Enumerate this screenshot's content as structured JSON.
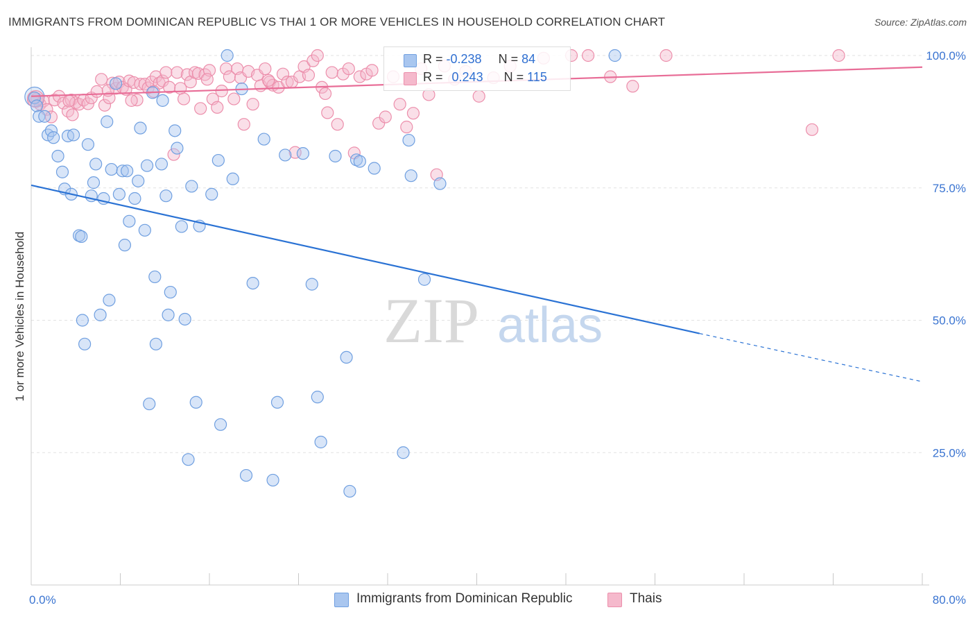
{
  "header": {
    "title": "IMMIGRANTS FROM DOMINICAN REPUBLIC VS THAI 1 OR MORE VEHICLES IN HOUSEHOLD CORRELATION CHART",
    "source": "Source: ZipAtlas.com"
  },
  "watermark": {
    "zip": "ZIP",
    "atlas": "atlas"
  },
  "legend_top": {
    "r_label": "R =",
    "n_label": "N =",
    "series1": {
      "r": "-0.238",
      "n": "84"
    },
    "series2": {
      "r": "0.243",
      "n": "115"
    }
  },
  "colors": {
    "blue_fill": "#a9c6ef",
    "blue_stroke": "#6f9fe0",
    "blue_line": "#2a72d4",
    "pink_fill": "#f5b9cc",
    "pink_stroke": "#ec8eab",
    "pink_line": "#e86d97",
    "tick_label": "#3a74d1"
  },
  "chart_data": {
    "type": "scatter",
    "title": "IMMIGRANTS FROM DOMINICAN REPUBLIC VS THAI 1 OR MORE VEHICLES IN HOUSEHOLD CORRELATION CHART",
    "xlabel": "",
    "ylabel": "1 or more Vehicles in Household",
    "xlim": [
      0,
      80
    ],
    "ylim": [
      0,
      100
    ],
    "x_tick_labels": [
      "0.0%",
      "80.0%"
    ],
    "y_ticks": [
      25,
      50,
      75,
      100
    ],
    "y_tick_labels": [
      "25.0%",
      "50.0%",
      "75.0%",
      "100.0%"
    ],
    "grid": true,
    "series": [
      {
        "name": "Immigrants from Dominican Republic",
        "color": "#6f9fe0",
        "r": -0.238,
        "n": 84,
        "trend": {
          "x0": 0,
          "y0": 75.5,
          "x1": 60,
          "y1": 47.5,
          "dashed_to_x": 80,
          "dashed_to_y": 38.4
        },
        "points": [
          [
            0.3,
            92.0
          ],
          [
            0.5,
            90.5
          ],
          [
            0.7,
            88.5
          ],
          [
            1.2,
            88.5
          ],
          [
            1.5,
            85.0
          ],
          [
            1.8,
            85.8
          ],
          [
            2.0,
            84.5
          ],
          [
            2.4,
            81.0
          ],
          [
            2.8,
            78.0
          ],
          [
            3.0,
            74.8
          ],
          [
            3.3,
            84.8
          ],
          [
            3.6,
            73.8
          ],
          [
            3.8,
            85.0
          ],
          [
            4.3,
            66.0
          ],
          [
            4.5,
            65.8
          ],
          [
            4.6,
            50.0
          ],
          [
            4.8,
            45.5
          ],
          [
            5.1,
            83.2
          ],
          [
            5.4,
            73.5
          ],
          [
            5.6,
            76.0
          ],
          [
            5.8,
            79.5
          ],
          [
            6.2,
            51.0
          ],
          [
            6.5,
            73.0
          ],
          [
            6.8,
            87.5
          ],
          [
            7.0,
            53.8
          ],
          [
            7.2,
            78.5
          ],
          [
            7.6,
            94.7
          ],
          [
            7.9,
            73.8
          ],
          [
            8.2,
            78.2
          ],
          [
            8.4,
            64.2
          ],
          [
            8.6,
            78.2
          ],
          [
            8.8,
            68.7
          ],
          [
            9.3,
            73.0
          ],
          [
            9.6,
            76.3
          ],
          [
            9.8,
            86.3
          ],
          [
            10.2,
            67.0
          ],
          [
            10.4,
            79.2
          ],
          [
            10.6,
            34.2
          ],
          [
            10.9,
            93.0
          ],
          [
            11.1,
            58.2
          ],
          [
            11.2,
            45.5
          ],
          [
            11.7,
            79.5
          ],
          [
            11.8,
            91.5
          ],
          [
            12.1,
            73.5
          ],
          [
            12.3,
            51.0
          ],
          [
            12.5,
            55.3
          ],
          [
            12.9,
            85.8
          ],
          [
            13.1,
            82.5
          ],
          [
            13.5,
            67.7
          ],
          [
            13.8,
            50.2
          ],
          [
            14.1,
            23.7
          ],
          [
            14.4,
            75.3
          ],
          [
            14.8,
            34.5
          ],
          [
            15.1,
            67.8
          ],
          [
            16.2,
            73.8
          ],
          [
            16.8,
            80.2
          ],
          [
            17.0,
            30.3
          ],
          [
            17.6,
            100.0
          ],
          [
            18.1,
            76.7
          ],
          [
            18.9,
            93.7
          ],
          [
            19.3,
            20.7
          ],
          [
            19.9,
            57.0
          ],
          [
            20.9,
            84.2
          ],
          [
            21.7,
            19.8
          ],
          [
            22.1,
            34.5
          ],
          [
            22.8,
            81.2
          ],
          [
            24.4,
            81.5
          ],
          [
            25.2,
            56.8
          ],
          [
            25.7,
            35.5
          ],
          [
            26.0,
            27.0
          ],
          [
            27.3,
            81.0
          ],
          [
            28.3,
            43.0
          ],
          [
            28.6,
            17.7
          ],
          [
            29.2,
            80.3
          ],
          [
            29.5,
            80.0
          ],
          [
            30.8,
            78.7
          ],
          [
            33.4,
            25.0
          ],
          [
            33.9,
            84.0
          ],
          [
            34.1,
            77.3
          ],
          [
            35.3,
            57.7
          ],
          [
            36.7,
            75.8
          ],
          [
            52.4,
            100.0
          ]
        ]
      },
      {
        "name": "Thais",
        "color": "#ec8eab",
        "r": 0.243,
        "n": 115,
        "trend": {
          "x0": 0,
          "y0": 92.3,
          "x1": 80,
          "y1": 97.8
        },
        "points": [
          [
            0.2,
            92.0
          ],
          [
            0.5,
            91.8
          ],
          [
            0.8,
            90.8
          ],
          [
            1.1,
            91.4
          ],
          [
            1.4,
            89.8
          ],
          [
            1.8,
            88.4
          ],
          [
            2.1,
            91.6
          ],
          [
            2.5,
            92.3
          ],
          [
            2.9,
            91.0
          ],
          [
            3.3,
            89.5
          ],
          [
            3.6,
            91.6
          ],
          [
            3.7,
            88.8
          ],
          [
            4.0,
            91.1
          ],
          [
            4.3,
            90.8
          ],
          [
            4.7,
            91.6
          ],
          [
            5.1,
            90.9
          ],
          [
            5.4,
            92.0
          ],
          [
            5.9,
            93.2
          ],
          [
            6.3,
            95.5
          ],
          [
            6.6,
            90.6
          ],
          [
            7.0,
            92.0
          ],
          [
            7.3,
            94.8
          ],
          [
            7.6,
            93.8
          ],
          [
            7.9,
            95.0
          ],
          [
            8.2,
            94.0
          ],
          [
            8.5,
            93.6
          ],
          [
            8.8,
            95.2
          ],
          [
            9.2,
            94.9
          ],
          [
            9.5,
            91.6
          ],
          [
            9.8,
            94.6
          ],
          [
            10.2,
            94.6
          ],
          [
            10.5,
            93.9
          ],
          [
            10.8,
            95.0
          ],
          [
            11.2,
            96.0
          ],
          [
            11.5,
            94.8
          ],
          [
            11.8,
            95.2
          ],
          [
            12.1,
            96.8
          ],
          [
            12.4,
            94.0
          ],
          [
            12.8,
            81.3
          ],
          [
            13.1,
            96.8
          ],
          [
            13.4,
            93.8
          ],
          [
            13.7,
            91.8
          ],
          [
            14.0,
            96.4
          ],
          [
            14.3,
            95.0
          ],
          [
            14.7,
            96.8
          ],
          [
            15.0,
            96.6
          ],
          [
            15.2,
            90.0
          ],
          [
            15.6,
            96.4
          ],
          [
            16.0,
            97.2
          ],
          [
            16.3,
            91.8
          ],
          [
            16.7,
            90.2
          ],
          [
            17.1,
            93.3
          ],
          [
            17.5,
            97.5
          ],
          [
            17.8,
            96.0
          ],
          [
            18.2,
            91.8
          ],
          [
            18.5,
            97.5
          ],
          [
            18.8,
            95.8
          ],
          [
            19.1,
            87.0
          ],
          [
            19.5,
            97.0
          ],
          [
            19.9,
            90.8
          ],
          [
            20.3,
            96.3
          ],
          [
            20.6,
            94.3
          ],
          [
            21.0,
            97.5
          ],
          [
            21.4,
            95.0
          ],
          [
            21.7,
            94.4
          ],
          [
            22.2,
            94.0
          ],
          [
            22.6,
            96.5
          ],
          [
            23.0,
            95.0
          ],
          [
            23.4,
            95.0
          ],
          [
            23.7,
            81.7
          ],
          [
            24.1,
            96.0
          ],
          [
            24.5,
            97.9
          ],
          [
            24.9,
            96.3
          ],
          [
            25.3,
            99.0
          ],
          [
            25.7,
            100.0
          ],
          [
            26.1,
            94.0
          ],
          [
            26.6,
            89.2
          ],
          [
            27.0,
            96.8
          ],
          [
            27.5,
            87.0
          ],
          [
            28.0,
            96.5
          ],
          [
            28.5,
            97.5
          ],
          [
            29.0,
            81.6
          ],
          [
            29.5,
            96.0
          ],
          [
            30.1,
            96.5
          ],
          [
            30.6,
            97.2
          ],
          [
            31.2,
            87.2
          ],
          [
            31.8,
            88.4
          ],
          [
            32.5,
            96.0
          ],
          [
            33.1,
            90.8
          ],
          [
            33.7,
            86.5
          ],
          [
            34.3,
            89.1
          ],
          [
            35.0,
            97.5
          ],
          [
            35.7,
            92.6
          ],
          [
            36.4,
            77.5
          ],
          [
            37.1,
            98.0
          ],
          [
            38.0,
            95.5
          ],
          [
            39.0,
            97.0
          ],
          [
            40.2,
            92.3
          ],
          [
            41.5,
            95.8
          ],
          [
            43.0,
            98.0
          ],
          [
            46.0,
            99.5
          ],
          [
            48.5,
            100.0
          ],
          [
            50.0,
            100.0
          ],
          [
            52.0,
            96.0
          ],
          [
            54.0,
            94.2
          ],
          [
            57.0,
            100.0
          ],
          [
            70.1,
            86.0
          ],
          [
            72.5,
            100.0
          ],
          [
            3.4,
            91.4
          ],
          [
            6.9,
            93.4
          ],
          [
            9.0,
            91.5
          ],
          [
            11.0,
            93.2
          ],
          [
            15.8,
            95.5
          ],
          [
            21.3,
            95.3
          ],
          [
            26.4,
            92.8
          ]
        ]
      }
    ]
  }
}
